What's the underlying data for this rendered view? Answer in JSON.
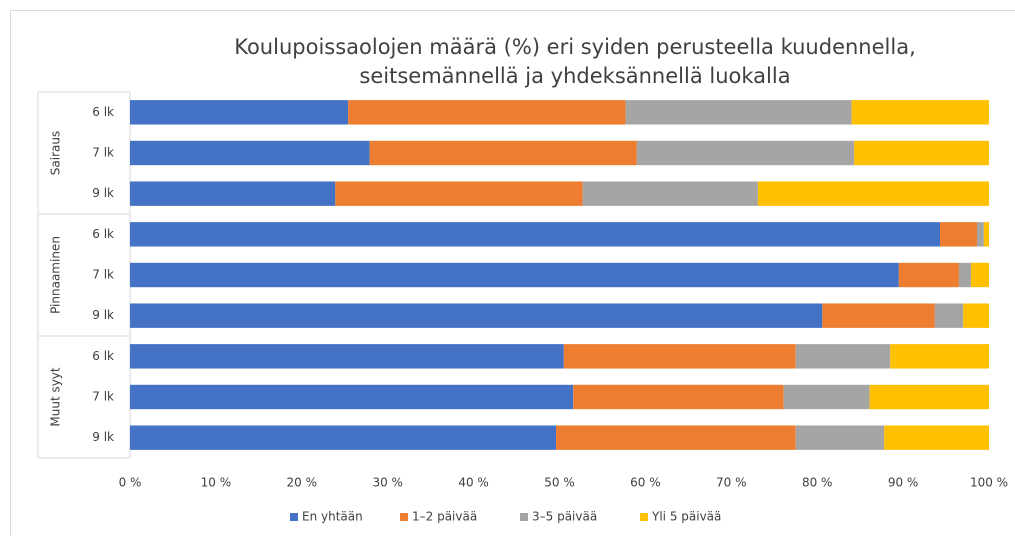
{
  "chart_data": {
    "type": "stacked_barh",
    "title": [
      "Koulupoissaolojen määrä (%) eri syiden perusteella kuudennella,",
      "seitsemännellä ja yhdeksännellä luokalla"
    ],
    "group_labels": [
      "Sairaus",
      "Pinnaaminen",
      "Muut syyt"
    ],
    "categories": [
      "6 lk",
      "7 lk",
      "9 lk",
      "6 lk",
      "7 lk",
      "9 lk",
      "6 lk",
      "7 lk",
      "9 lk"
    ],
    "series": [
      {
        "name": "En yhtään",
        "color": "#4472c4",
        "values": [
          25.4,
          27.9,
          23.9,
          94.3,
          89.5,
          80.6,
          50.5,
          51.6,
          49.6
        ]
      },
      {
        "name": "1–2 päivää",
        "color": "#ed7d31",
        "values": [
          32.3,
          31.1,
          28.8,
          4.3,
          7.0,
          13.1,
          27.0,
          24.5,
          27.9
        ]
      },
      {
        "name": "3–5 päivää",
        "color": "#a5a5a5",
        "values": [
          26.3,
          25.3,
          20.4,
          0.8,
          1.4,
          3.3,
          11.0,
          10.0,
          10.3
        ]
      },
      {
        "name": "Yli 5 päivää",
        "color": "#ffc000",
        "values": [
          16.0,
          15.7,
          26.9,
          0.6,
          2.1,
          3.0,
          11.5,
          13.9,
          12.2
        ]
      }
    ],
    "xlim": [
      0,
      100
    ],
    "xticks": [
      {
        "value": 0,
        "label": "0 %"
      },
      {
        "value": 10,
        "label": "10 %"
      },
      {
        "value": 20,
        "label": "20 %"
      },
      {
        "value": 30,
        "label": "30 %"
      },
      {
        "value": 40,
        "label": "40 %"
      },
      {
        "value": 50,
        "label": "50 %"
      },
      {
        "value": 60,
        "label": "60 %"
      },
      {
        "value": 70,
        "label": "70 %"
      },
      {
        "value": 80,
        "label": "80 %"
      },
      {
        "value": 90,
        "label": "90 %"
      },
      {
        "value": 100,
        "label": "100 %"
      }
    ],
    "legend": "bottom"
  }
}
